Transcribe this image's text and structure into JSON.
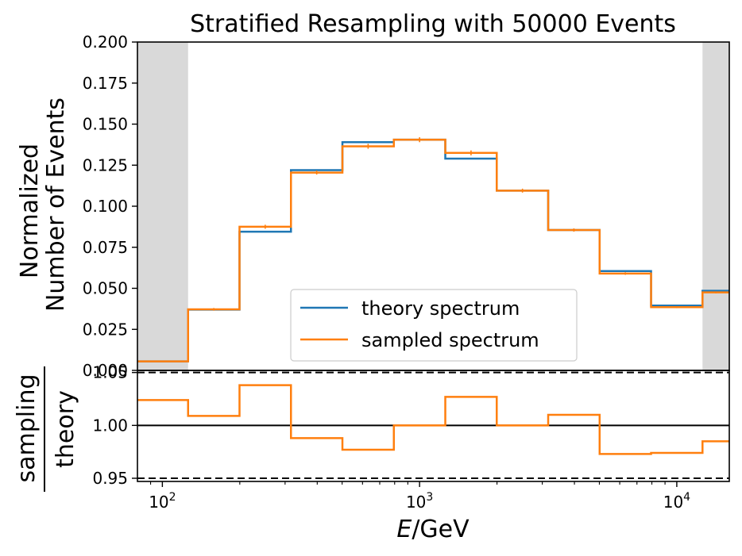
{
  "chart_data": [
    {
      "type": "line",
      "title": "Stratified Resampling with 50000 Events",
      "ylabel_line1": "Normalized",
      "ylabel_line2": "Number of Events",
      "xscale": "log",
      "xlim": [
        80,
        16000
      ],
      "ylim": [
        0,
        0.2
      ],
      "yticks": [
        "0.000",
        "0.025",
        "0.050",
        "0.075",
        "0.100",
        "0.125",
        "0.150",
        "0.175",
        "0.200"
      ],
      "bin_edges": [
        80,
        125.9,
        199.5,
        316.2,
        501.2,
        794.3,
        1258.9,
        1995.3,
        3162.3,
        5011.9,
        7943.3,
        12589.3,
        16000
      ],
      "shaded_regions": [
        [
          80,
          125.9
        ],
        [
          12589.3,
          16000
        ]
      ],
      "legend_position": "lower center",
      "series": [
        {
          "name": "theory spectrum",
          "color": "#1f77b4",
          "values": [
            0.0055,
            0.037,
            0.0845,
            0.122,
            0.139,
            0.1405,
            0.129,
            0.1095,
            0.0855,
            0.0605,
            0.0395,
            0.0485
          ]
        },
        {
          "name": "sampled spectrum",
          "color": "#ff7f0e",
          "values": [
            0.0055,
            0.0372,
            0.0875,
            0.1205,
            0.1365,
            0.1405,
            0.1325,
            0.1095,
            0.0855,
            0.059,
            0.0385,
            0.0475
          ],
          "errors": [
            0.0003,
            0.0008,
            0.0012,
            0.0012,
            0.0015,
            0.0015,
            0.0015,
            0.0012,
            0.001,
            0.0008,
            0.0006,
            0.0006
          ]
        }
      ]
    },
    {
      "type": "line",
      "ylabel_numerator": "sampling",
      "ylabel_denominator": "theory",
      "xlabel_italic": "E",
      "xlabel_rest": "/GeV",
      "xscale": "log",
      "xlim": [
        80,
        16000
      ],
      "ylim": [
        0.947,
        1.052
      ],
      "yticks": [
        "0.95",
        "1.00",
        "1.05"
      ],
      "xticks": [
        {
          "base": "10",
          "exp": "2",
          "value": 100
        },
        {
          "base": "10",
          "exp": "3",
          "value": 1000
        },
        {
          "base": "10",
          "exp": "4",
          "value": 10000
        }
      ],
      "reference_lines": [
        {
          "y": 1.0,
          "style": "solid"
        },
        {
          "y": 0.95,
          "style": "dashed"
        },
        {
          "y": 1.05,
          "style": "dashed"
        }
      ],
      "series": [
        {
          "name": "ratio",
          "color": "#ff7f0e",
          "values": [
            1.024,
            1.009,
            1.038,
            0.988,
            0.977,
            1.0,
            1.027,
            1.0,
            1.01,
            0.973,
            0.974,
            0.985
          ]
        }
      ]
    }
  ]
}
